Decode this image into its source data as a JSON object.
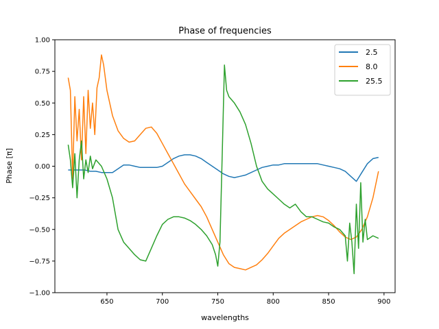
{
  "chart_data": {
    "type": "line",
    "title": "Phase of frequencies",
    "xlabel": "wavelengths",
    "ylabel": "Phase [π]",
    "xlim": [
      603,
      910
    ],
    "ylim": [
      -1.0,
      1.0
    ],
    "xticks": [
      650,
      700,
      750,
      800,
      850,
      900
    ],
    "xtick_labels": [
      "650",
      "700",
      "750",
      "800",
      "850",
      "900"
    ],
    "yticks": [
      -1.0,
      -0.75,
      -0.5,
      -0.25,
      0.0,
      0.25,
      0.5,
      0.75,
      1.0
    ],
    "ytick_labels": [
      "−1.00",
      "−0.75",
      "−0.50",
      "−0.25",
      "0.00",
      "0.25",
      "0.50",
      "0.75",
      "1.00"
    ],
    "grid": false,
    "legend_position": "top-right",
    "series": [
      {
        "name": "2.5",
        "color": "#1f77b4",
        "x": [
          615,
          620,
          625,
          630,
          635,
          640,
          645,
          650,
          655,
          660,
          665,
          670,
          675,
          680,
          685,
          690,
          695,
          700,
          705,
          710,
          715,
          720,
          725,
          730,
          735,
          740,
          745,
          750,
          755,
          760,
          765,
          770,
          775,
          780,
          785,
          790,
          795,
          800,
          805,
          810,
          815,
          820,
          825,
          830,
          835,
          840,
          845,
          850,
          855,
          860,
          865,
          870,
          875,
          880,
          885,
          890,
          895
        ],
        "y": [
          -0.03,
          -0.03,
          -0.03,
          -0.03,
          -0.04,
          -0.04,
          -0.05,
          -0.05,
          -0.05,
          -0.02,
          0.01,
          0.01,
          0.0,
          -0.01,
          -0.01,
          -0.01,
          -0.01,
          0.0,
          0.03,
          0.06,
          0.08,
          0.09,
          0.09,
          0.08,
          0.06,
          0.03,
          0.0,
          -0.03,
          -0.06,
          -0.08,
          -0.09,
          -0.08,
          -0.07,
          -0.05,
          -0.03,
          -0.01,
          0.0,
          0.01,
          0.01,
          0.02,
          0.02,
          0.02,
          0.02,
          0.02,
          0.02,
          0.02,
          0.01,
          0.0,
          -0.01,
          -0.02,
          -0.04,
          -0.08,
          -0.12,
          -0.05,
          0.02,
          0.06,
          0.07
        ]
      },
      {
        "name": "8.0",
        "color": "#ff7f0e",
        "x": [
          615,
          617,
          619,
          621,
          623,
          625,
          627,
          629,
          631,
          633,
          635,
          637,
          639,
          641,
          643,
          645,
          647,
          650,
          655,
          660,
          665,
          670,
          675,
          680,
          685,
          690,
          695,
          700,
          705,
          710,
          715,
          720,
          725,
          730,
          735,
          740,
          745,
          750,
          755,
          760,
          765,
          770,
          775,
          780,
          785,
          790,
          795,
          800,
          805,
          810,
          815,
          820,
          825,
          830,
          835,
          840,
          845,
          850,
          855,
          860,
          865,
          870,
          875,
          880,
          885,
          890,
          895
        ],
        "y": [
          0.7,
          0.6,
          -0.1,
          0.55,
          0.2,
          0.45,
          0.05,
          0.55,
          0.1,
          0.6,
          0.3,
          0.5,
          0.25,
          0.62,
          0.7,
          0.88,
          0.8,
          0.6,
          0.4,
          0.28,
          0.22,
          0.19,
          0.2,
          0.25,
          0.3,
          0.31,
          0.26,
          0.18,
          0.1,
          0.02,
          -0.06,
          -0.14,
          -0.2,
          -0.26,
          -0.32,
          -0.4,
          -0.5,
          -0.6,
          -0.7,
          -0.77,
          -0.8,
          -0.81,
          -0.82,
          -0.8,
          -0.78,
          -0.74,
          -0.69,
          -0.63,
          -0.57,
          -0.53,
          -0.5,
          -0.47,
          -0.44,
          -0.42,
          -0.4,
          -0.39,
          -0.4,
          -0.43,
          -0.47,
          -0.52,
          -0.56,
          -0.58,
          -0.56,
          -0.5,
          -0.4,
          -0.25,
          -0.04
        ]
      },
      {
        "name": "25.5",
        "color": "#2ca02c",
        "x": [
          615,
          617,
          619,
          621,
          623,
          625,
          627,
          629,
          631,
          633,
          635,
          637,
          640,
          645,
          650,
          655,
          660,
          665,
          670,
          675,
          680,
          685,
          690,
          695,
          700,
          705,
          710,
          715,
          720,
          725,
          730,
          735,
          740,
          745,
          748,
          750,
          752,
          754,
          756,
          758,
          760,
          765,
          770,
          775,
          780,
          785,
          790,
          795,
          800,
          805,
          810,
          815,
          820,
          825,
          830,
          835,
          840,
          845,
          850,
          855,
          860,
          865,
          867,
          869,
          871,
          873,
          875,
          877,
          879,
          881,
          883,
          885,
          890,
          895
        ],
        "y": [
          0.17,
          0.05,
          -0.17,
          0.1,
          -0.25,
          0.05,
          0.2,
          -0.1,
          0.05,
          -0.05,
          0.08,
          -0.02,
          0.05,
          0.0,
          -0.1,
          -0.25,
          -0.5,
          -0.6,
          -0.65,
          -0.7,
          -0.74,
          -0.75,
          -0.65,
          -0.55,
          -0.46,
          -0.42,
          -0.4,
          -0.4,
          -0.41,
          -0.43,
          -0.46,
          -0.5,
          -0.55,
          -0.62,
          -0.7,
          -0.79,
          -0.6,
          0.1,
          0.8,
          0.6,
          0.55,
          0.5,
          0.43,
          0.33,
          0.18,
          0.0,
          -0.12,
          -0.18,
          -0.22,
          -0.26,
          -0.3,
          -0.33,
          -0.3,
          -0.36,
          -0.4,
          -0.4,
          -0.42,
          -0.44,
          -0.45,
          -0.48,
          -0.5,
          -0.55,
          -0.75,
          -0.45,
          -0.6,
          -0.85,
          -0.3,
          -0.65,
          -0.13,
          -0.6,
          -0.42,
          -0.58,
          -0.55,
          -0.57
        ]
      }
    ]
  }
}
